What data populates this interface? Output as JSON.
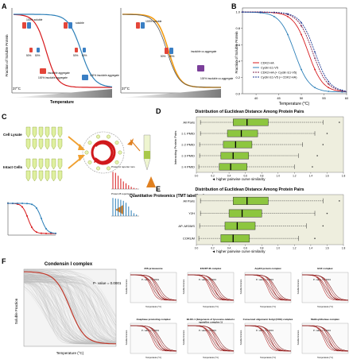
{
  "panels": {
    "A": {
      "letter": "A",
      "ylabel": "Fraction of Soluble Protein",
      "xlabel": "Temperature",
      "left_temp": "37°C",
      "right_temp": "37°C",
      "labels_left": [
        "100% soluble",
        "soluble",
        "50%",
        "50%",
        "50%",
        "50%",
        "100% insoluble aggregate",
        "100% insoluble aggregate",
        "insoluble aggregate"
      ],
      "labels_right": [
        "100% soluble",
        "50%",
        "50%",
        "insoluble co-aggregate",
        "100% insoluble co-aggregate"
      ]
    },
    "B": {
      "letter": "B",
      "ylabel": "Fraction of Soluble Protein",
      "xlabel": "Temperature (°C)",
      "legend": [
        "CDK2-HA",
        "Cyclin E1-V5",
        "CDK2-HA (+ Cyclin E1-V5)",
        "Cyclin E1-V5 (+ CDK2-HA)"
      ],
      "legend_colors": [
        "#d7191c",
        "#2c7fb8",
        "#7b1f4a",
        "#1f3a93"
      ]
    },
    "C": {
      "letter": "C",
      "left_labels": [
        "Cell Lysate",
        "Intact Cells"
      ],
      "arrow_label": "Quantitative Proteomics (TMT labelling)",
      "protein_labels": [
        "Protein A reporter ions",
        "Protein B reporter ions"
      ]
    },
    "D": {
      "letter": "D",
      "title": "Distribution of Euclidean Distance Among Protein Pairs",
      "ylabel": "Interacting Protein Pairs",
      "categories": [
        "All Pairs",
        "≥ 1 PMID",
        "≥ 2 PMID",
        "≥ 3 PMID",
        "≥ 4 PMID"
      ],
      "xlabel": "◄ higher pairwise curve similarity",
      "box_color": "#8dc63f",
      "ticks": [
        "0.0",
        "0.2",
        "0.4",
        "0.6",
        "0.8",
        "1.0",
        "1.2",
        "1.4",
        "1.6",
        "1.8"
      ]
    },
    "E": {
      "letter": "E",
      "title": "Distribution of Euclidean Distance Among Protein Pairs",
      "categories": [
        "All Pairs",
        "Y2H",
        "AP–MS/MS",
        "CORUM"
      ],
      "xlabel": "◄ higher pairwise curve similarity",
      "box_color": "#8dc63f"
    },
    "F": {
      "letter": "F",
      "main_title": "Condensin I complex",
      "main_pval": "P- value = 0.0001",
      "main_xlabel": "Temperature (°C)",
      "main_ylabel": "Soluble Fraction",
      "small": [
        {
          "title": "20S proteasome",
          "pval": "P- value < 0.0001"
        },
        {
          "title": "ESCRT-III complex",
          "pval": "P- value = 0.0001"
        },
        {
          "title": "Arp2/3 protein complex",
          "pval": "P- value = 0.0001"
        },
        {
          "title": "BAF complex",
          "pval": "P- value = 0.0001"
        },
        {
          "title": "Anaphase promoting complex",
          "pval": "P- value = 0.0001"
        },
        {
          "title": "BLOC-1 (biogenesis of lysosome-related organelles complex 1)",
          "pval": "P- value = 0.0001"
        },
        {
          "title": "Conserved oligomeric Golgi (COG) complex",
          "pval": "P- value = 0.0001"
        },
        {
          "title": "Multisynthetase complex",
          "pval": "P- value = 0.0001"
        }
      ],
      "small_xlabel": "Temperature [°C]",
      "small_ylabel": "Soluble Fraction"
    }
  },
  "chart_data": [
    {
      "type": "line",
      "panel": "B",
      "xlabel": "Temperature (°C)",
      "ylabel": "Fraction of Soluble Protein",
      "xlim": [
        37,
        60
      ],
      "ylim": [
        0,
        1.05
      ],
      "xticks": [
        40,
        45,
        50,
        55,
        60
      ],
      "yticks": [
        0,
        0.2,
        0.4,
        0.6,
        0.8,
        1.0
      ],
      "series": [
        {
          "name": "CDK2-HA",
          "tm": 51.5
        },
        {
          "name": "Cyclin E1-V5",
          "tm": 48.5
        },
        {
          "name": "CDK2-HA (+ Cyclin E1-V5)",
          "tm": 52.5
        },
        {
          "name": "Cyclin E1-V5 (+ CDK2-HA)",
          "tm": 53.0
        }
      ]
    },
    {
      "type": "box",
      "panel": "D",
      "title": "Distribution of Euclidean Distance Among Protein Pairs",
      "categories": [
        "All Pairs",
        "≥ 1 PMID",
        "≥ 2 PMID",
        "≥ 3 PMID",
        "≥ 4 PMID"
      ],
      "boxes": [
        {
          "q1": 0.45,
          "median": 0.62,
          "q3": 0.88,
          "whisker_low": 0.05,
          "whisker_high": 1.55,
          "outlier_max": 1.75
        },
        {
          "q1": 0.38,
          "median": 0.55,
          "q3": 0.75,
          "whisker_low": 0.05,
          "whisker_high": 1.45,
          "outlier_max": 1.6
        },
        {
          "q1": 0.33,
          "median": 0.48,
          "q3": 0.68,
          "whisker_low": 0.04,
          "whisker_high": 1.3,
          "outlier_max": 1.55
        },
        {
          "q1": 0.3,
          "median": 0.45,
          "q3": 0.64,
          "whisker_low": 0.04,
          "whisker_high": 1.25,
          "outlier_max": 1.48
        },
        {
          "q1": 0.28,
          "median": 0.42,
          "q3": 0.62,
          "whisker_low": 0.03,
          "whisker_high": 1.2,
          "outlier_max": 1.42
        }
      ],
      "xlim": [
        0,
        1.8
      ]
    },
    {
      "type": "box",
      "panel": "E",
      "title": "Distribution of Euclidean Distance Among Protein Pairs",
      "categories": [
        "All Pairs",
        "Y2H",
        "AP–MS/MS",
        "CORUM"
      ],
      "boxes": [
        {
          "q1": 0.45,
          "median": 0.62,
          "q3": 0.88,
          "whisker_low": 0.05,
          "whisker_high": 1.55,
          "outlier_max": 1.75
        },
        {
          "q1": 0.4,
          "median": 0.56,
          "q3": 0.8,
          "whisker_low": 0.05,
          "whisker_high": 1.45,
          "outlier_max": 1.6
        },
        {
          "q1": 0.35,
          "median": 0.5,
          "q3": 0.72,
          "whisker_low": 0.04,
          "whisker_high": 1.35,
          "outlier_max": 1.55
        },
        {
          "q1": 0.3,
          "median": 0.45,
          "q3": 0.65,
          "whisker_low": 0.03,
          "whisker_high": 1.25,
          "outlier_max": 1.45
        }
      ],
      "xlim": [
        0,
        1.8
      ]
    }
  ]
}
